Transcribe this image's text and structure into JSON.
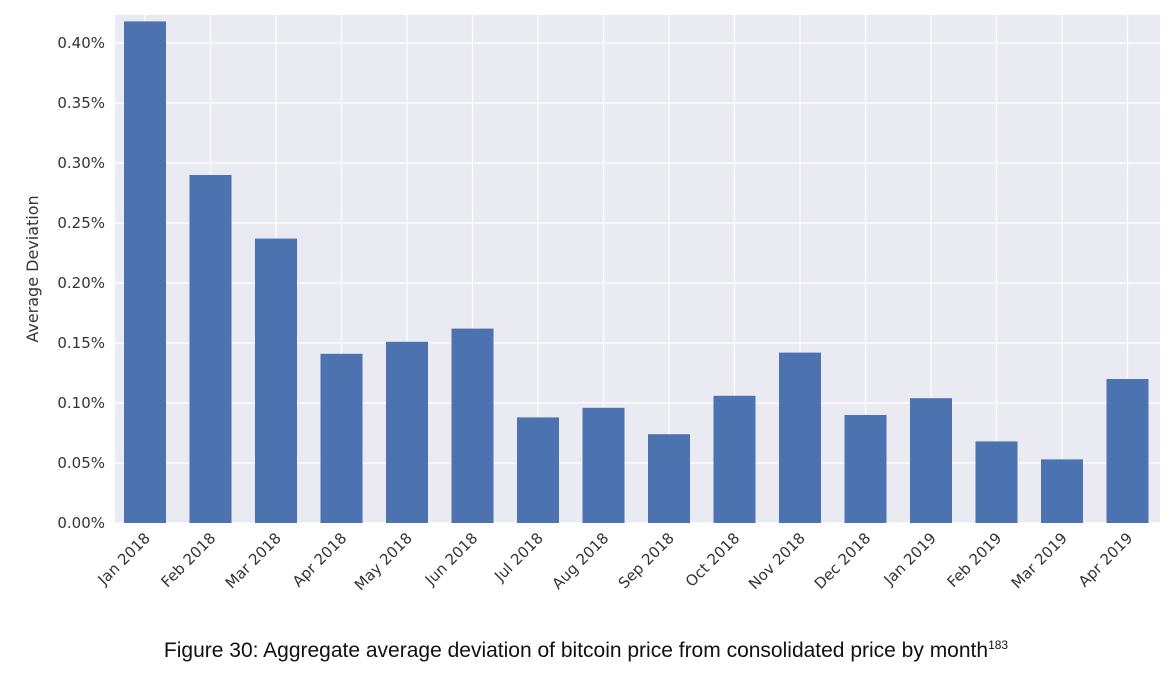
{
  "chart_data": {
    "type": "bar",
    "title": "",
    "xlabel": "",
    "ylabel": "Average Deviation",
    "ylim": [
      0,
      0.42
    ],
    "yticks": [
      "0.00%",
      "0.05%",
      "0.10%",
      "0.15%",
      "0.20%",
      "0.25%",
      "0.30%",
      "0.35%",
      "0.40%"
    ],
    "ytick_values": [
      0,
      0.05,
      0.1,
      0.15,
      0.2,
      0.25,
      0.3,
      0.35,
      0.4
    ],
    "categories": [
      "Jan 2018",
      "Feb 2018",
      "Mar 2018",
      "Apr 2018",
      "May 2018",
      "Jun 2018",
      "Jul 2018",
      "Aug 2018",
      "Sep 2018",
      "Oct 2018",
      "Nov 2018",
      "Dec 2018",
      "Jan 2019",
      "Feb 2019",
      "Mar 2019",
      "Apr 2019"
    ],
    "values": [
      0.418,
      0.29,
      0.237,
      0.141,
      0.151,
      0.162,
      0.088,
      0.096,
      0.074,
      0.106,
      0.142,
      0.09,
      0.104,
      0.068,
      0.053,
      0.12
    ],
    "unit": "%",
    "grid": true,
    "bar_color": "#4c72b0",
    "background_color": "#eaeaf2"
  },
  "caption": {
    "text": "Figure 30: Aggregate average deviation of bitcoin price from consolidated price by month",
    "footnote": "183"
  }
}
